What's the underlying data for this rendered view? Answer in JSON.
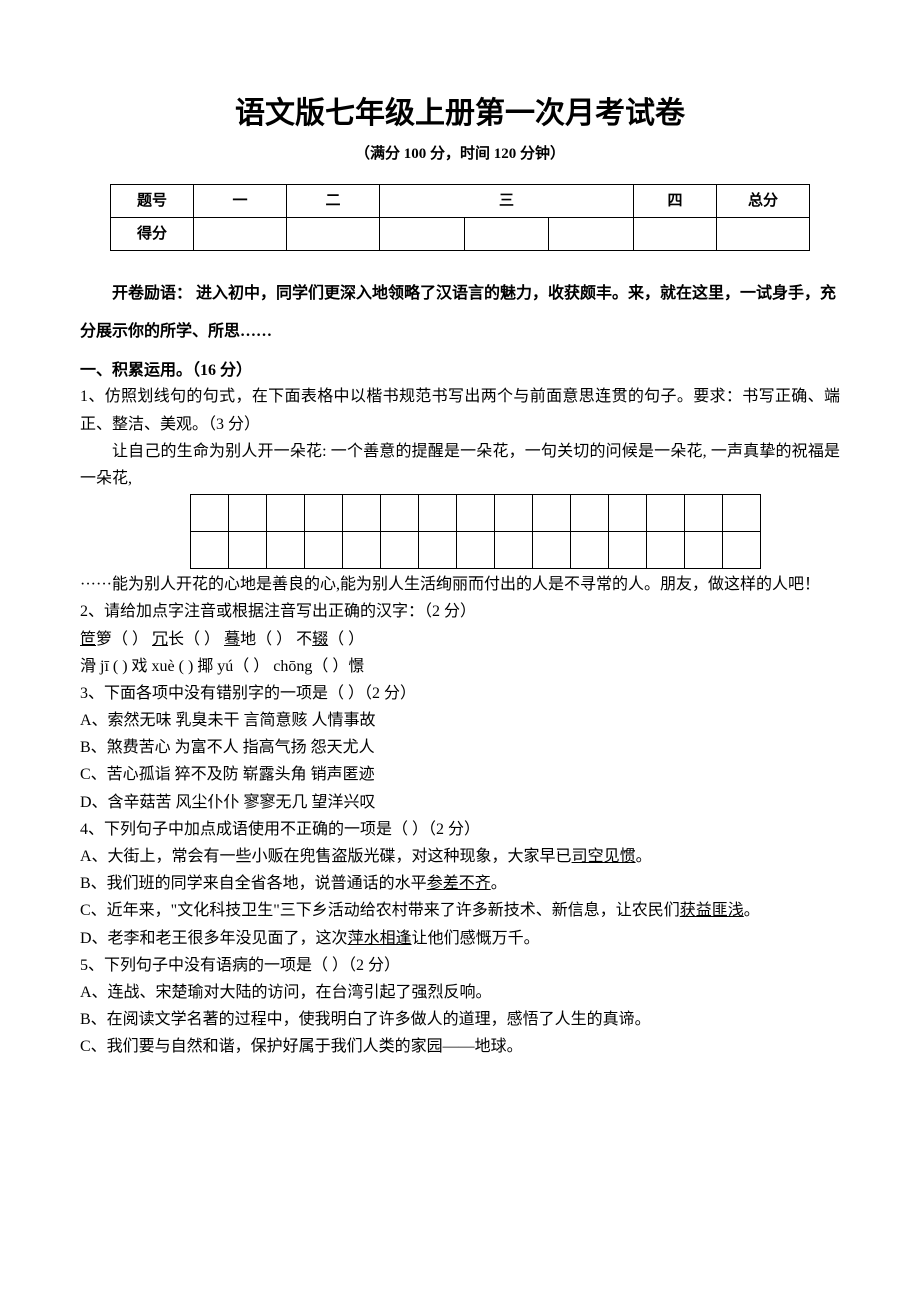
{
  "title": "语文版七年级上册第一次月考试卷",
  "subtitle": "（满分 100 分，时间 120 分钟）",
  "score_table": {
    "row1": [
      "题号",
      "一",
      "二",
      "三",
      "",
      "",
      "四",
      "总分"
    ],
    "row2": [
      "得分",
      "",
      "",
      "",
      "",
      "",
      "",
      ""
    ],
    "widths": [
      80,
      90,
      90,
      90,
      90,
      90,
      80,
      90
    ]
  },
  "motivation": "开卷励语： 进入初中，同学们更深入地领略了汉语言的魅力，收获颇丰。来，就在这里，一试身手，充分展示你的所学、所思……",
  "section1_title": "一、积累运用。（16 分）",
  "q1_a": "1、仿照划线句的句式，在下面表格中以楷书规范书写出两个与前面意思连贯的句子。要求：书写正确、端正、整洁、美观。（3 分）",
  "q1_b": "让自己的生命为别人开一朵花: 一个善意的提醒是一朵花，一句关切的问候是一朵花, 一声真挚的祝福是一朵花,",
  "q1_c": "······能为别人开花的心地是善良的心,能为别人生活绚丽而付出的人是不寻常的人。朋友，做这样的人吧！",
  "grid_cols": 15,
  "grid_rows": 2,
  "q2_a": "2、请给加点字注音或根据注音写出正确的汉字：（2 分）",
  "q2_line1_a": "笸",
  "q2_line1_b": "箩（    ）   ",
  "q2_line1_c": "冗",
  "q2_line1_d": "长（    ）     ",
  "q2_line1_e": "蓦",
  "q2_line1_f": "地（    ）   不",
  "q2_line1_g": "辍",
  "q2_line1_h": "（    ）",
  "q2_line2": "滑 jī (        )     戏 xuè (       )       揶 yú（    ）    chōng（    ）憬",
  "q3_a": "3、下面各项中没有错别字的一项是（    ）（2 分）",
  "q3_optA": "A、索然无味     乳臭未干     言简意赅     人情事故",
  "q3_optB": "B、煞费苦心     为富不人     指高气扬     怨天尤人",
  "q3_optC": "C、苦心孤诣     猝不及防     崭露头角     销声匿迹",
  "q3_optD": "D、含辛菇苦     风尘仆仆     寥寥无几     望洋兴叹",
  "q4_a": "4、下列句子中加点成语使用不正确的一项是（   ）（2 分）",
  "q4_A_a": "A、大街上，常会有一些小贩在兜售盗版光碟，对这种现象，大家早已",
  "q4_A_u": "司空见惯",
  "q4_A_b": "。",
  "q4_B_a": "B、我们班的同学来自全省各地，说普通话的水平",
  "q4_B_u": "参差不齐",
  "q4_B_b": "。",
  "q4_C_a": "C、近年来，\"文化科技卫生\"三下乡活动给农村带来了许多新技术、新信息，让农民们",
  "q4_C_u": "获益匪浅",
  "q4_C_b": "。",
  "q4_D_a": "D、老李和老王很多年没见面了，这次",
  "q4_D_u": "萍水相逢",
  "q4_D_b": "让他们感慨万千。",
  "q5_a": "5、下列句子中没有语病的一项是（    ）（2 分）",
  "q5_optA": "A、连战、宋楚瑜对大陆的访问，在台湾引起了强烈反响。",
  "q5_optB": "B、在阅读文学名著的过程中，使我明白了许多做人的道理，感悟了人生的真谛。",
  "q5_optC": "C、我们要与自然和谐，保护好属于我们人类的家园——地球。"
}
